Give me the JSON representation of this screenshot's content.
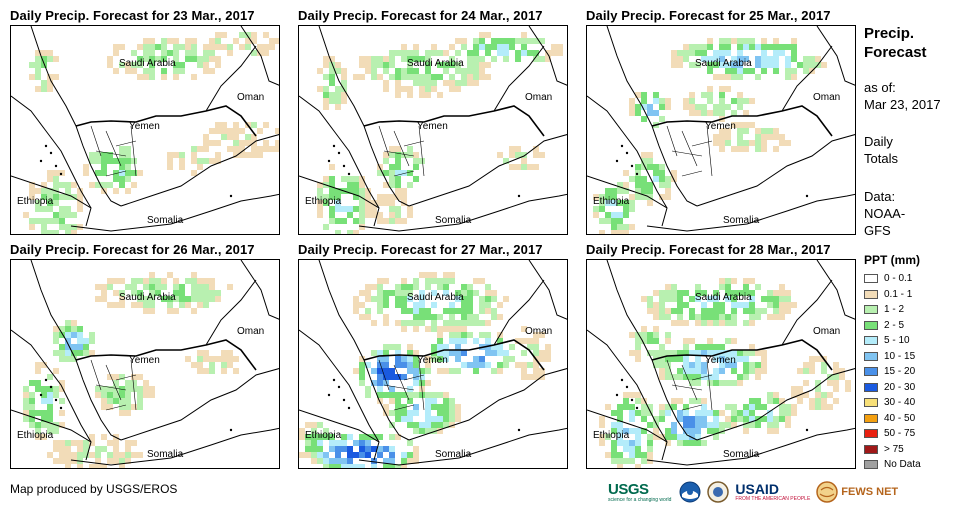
{
  "panels": [
    {
      "title": "Daily Precip. Forecast for 23 Mar., 2017"
    },
    {
      "title": "Daily Precip. Forecast for 24 Mar., 2017"
    },
    {
      "title": "Daily Precip. Forecast for 25 Mar., 2017"
    },
    {
      "title": "Daily Precip. Forecast for 26 Mar., 2017"
    },
    {
      "title": "Daily Precip. Forecast for 27 Mar., 2017"
    },
    {
      "title": "Daily Precip. Forecast for 28 Mar., 2017"
    }
  ],
  "map_labels": {
    "saudi_arabia": "Saudi Arabia",
    "oman": "Oman",
    "yemen": "Yemen",
    "ethiopia": "Ethiopia",
    "somalia": "Somalia"
  },
  "sidebar": {
    "title_line1": "Precip.",
    "title_line2": "Forecast",
    "asof_label": "as of:",
    "asof_date": "Mar 23, 2017",
    "daily_line1": "Daily",
    "daily_line2": "Totals",
    "data_line1": "Data:",
    "data_line2": "NOAA-",
    "data_line3": "GFS"
  },
  "legend": {
    "title": "PPT (mm)",
    "items": [
      {
        "label": "0 - 0.1",
        "color": "#ffffff"
      },
      {
        "label": "0.1 - 1",
        "color": "#f2dcb8"
      },
      {
        "label": "1 - 2",
        "color": "#b8f0b0"
      },
      {
        "label": "2 - 5",
        "color": "#78e078"
      },
      {
        "label": "5 - 10",
        "color": "#b4ecfa"
      },
      {
        "label": "10 - 15",
        "color": "#80c4f2"
      },
      {
        "label": "15 - 20",
        "color": "#4a90e8"
      },
      {
        "label": "20 - 30",
        "color": "#1a5ae0"
      },
      {
        "label": "30 - 40",
        "color": "#f8e078"
      },
      {
        "label": "40 - 50",
        "color": "#f4a010"
      },
      {
        "label": "50 - 75",
        "color": "#e82010"
      },
      {
        "label": "> 75",
        "color": "#a01818"
      },
      {
        "label": "No Data",
        "color": "#a0a0a0"
      }
    ]
  },
  "footer": {
    "credit": "Map produced by USGS/EROS",
    "usgs": "USGS",
    "usgs_tagline": "science for a changing world",
    "usaid": "USAID",
    "usaid_tagline": "FROM THE AMERICAN PEOPLE",
    "fews": "FEWS NET"
  }
}
